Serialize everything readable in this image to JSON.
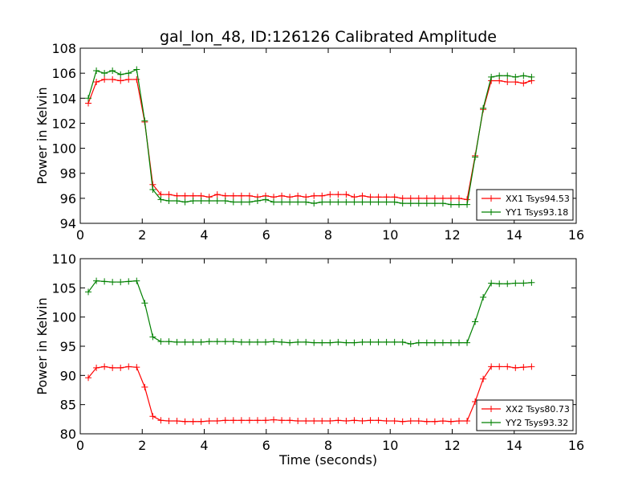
{
  "figure": {
    "title": "gal_lon_48, ID:126126 Calibrated Amplitude"
  },
  "chart_data": [
    {
      "type": "line",
      "title": "gal_lon_48, ID:126126 Calibrated Amplitude",
      "xlabel": "",
      "ylabel": "Power in Kelvin",
      "xlim": [
        0,
        16
      ],
      "ylim": [
        94,
        108
      ],
      "xticks": [
        0,
        2,
        4,
        6,
        8,
        10,
        12,
        14,
        16
      ],
      "yticks": [
        94,
        96,
        98,
        100,
        102,
        104,
        106,
        108
      ],
      "grid": false,
      "legend_position": "lower-right",
      "x": [
        0.26,
        0.52,
        0.78,
        1.04,
        1.3,
        1.56,
        1.82,
        2.08,
        2.34,
        2.6,
        2.86,
        3.12,
        3.38,
        3.64,
        3.9,
        4.16,
        4.42,
        4.68,
        4.94,
        5.2,
        5.46,
        5.72,
        5.98,
        6.24,
        6.5,
        6.76,
        7.02,
        7.28,
        7.54,
        7.8,
        8.06,
        8.32,
        8.58,
        8.84,
        9.1,
        9.36,
        9.62,
        9.88,
        10.14,
        10.4,
        10.66,
        10.92,
        11.18,
        11.44,
        11.7,
        11.96,
        12.22,
        12.48,
        12.74,
        13.0,
        13.26,
        13.52,
        13.78,
        14.04,
        14.3,
        14.56
      ],
      "series": [
        {
          "name": "XX1 Tsys94.53",
          "color": "#ff0000",
          "values": [
            103.6,
            105.3,
            105.5,
            105.5,
            105.4,
            105.5,
            105.5,
            102.1,
            97.1,
            96.3,
            96.3,
            96.2,
            96.2,
            96.2,
            96.2,
            96.1,
            96.3,
            96.2,
            96.2,
            96.2,
            96.2,
            96.1,
            96.2,
            96.1,
            96.2,
            96.1,
            96.2,
            96.1,
            96.2,
            96.2,
            96.3,
            96.3,
            96.3,
            96.1,
            96.2,
            96.1,
            96.1,
            96.1,
            96.1,
            96.0,
            96.0,
            96.0,
            96.0,
            96.0,
            96.0,
            96.0,
            96.0,
            95.9,
            99.4,
            103.1,
            105.4,
            105.4,
            105.3,
            105.3,
            105.2,
            105.4
          ]
        },
        {
          "name": "YY1 Tsys93.18",
          "color": "#008000",
          "values": [
            104.0,
            106.2,
            106.0,
            106.2,
            105.9,
            106.0,
            106.3,
            102.2,
            96.7,
            95.9,
            95.8,
            95.8,
            95.7,
            95.8,
            95.8,
            95.8,
            95.8,
            95.8,
            95.7,
            95.7,
            95.7,
            95.8,
            95.9,
            95.7,
            95.7,
            95.7,
            95.7,
            95.7,
            95.6,
            95.7,
            95.7,
            95.7,
            95.7,
            95.7,
            95.7,
            95.7,
            95.7,
            95.7,
            95.7,
            95.6,
            95.6,
            95.6,
            95.6,
            95.6,
            95.6,
            95.5,
            95.5,
            95.5,
            99.3,
            103.2,
            105.7,
            105.8,
            105.8,
            105.7,
            105.8,
            105.7
          ]
        }
      ]
    },
    {
      "type": "line",
      "title": "",
      "xlabel": "Time (seconds)",
      "ylabel": "Power in Kelvin",
      "xlim": [
        0,
        16
      ],
      "ylim": [
        80,
        110
      ],
      "xticks": [
        0,
        2,
        4,
        6,
        8,
        10,
        12,
        14,
        16
      ],
      "yticks": [
        80,
        85,
        90,
        95,
        100,
        105,
        110
      ],
      "grid": false,
      "legend_position": "lower-right",
      "x": [
        0.26,
        0.52,
        0.78,
        1.04,
        1.3,
        1.56,
        1.82,
        2.08,
        2.34,
        2.6,
        2.86,
        3.12,
        3.38,
        3.64,
        3.9,
        4.16,
        4.42,
        4.68,
        4.94,
        5.2,
        5.46,
        5.72,
        5.98,
        6.24,
        6.5,
        6.76,
        7.02,
        7.28,
        7.54,
        7.8,
        8.06,
        8.32,
        8.58,
        8.84,
        9.1,
        9.36,
        9.62,
        9.88,
        10.14,
        10.4,
        10.66,
        10.92,
        11.18,
        11.44,
        11.7,
        11.96,
        12.22,
        12.48,
        12.74,
        13.0,
        13.26,
        13.52,
        13.78,
        14.04,
        14.3,
        14.56
      ],
      "series": [
        {
          "name": "XX2 Tsys80.73",
          "color": "#ff0000",
          "values": [
            89.6,
            91.3,
            91.5,
            91.3,
            91.3,
            91.5,
            91.4,
            88.0,
            83.0,
            82.3,
            82.2,
            82.2,
            82.1,
            82.1,
            82.1,
            82.2,
            82.2,
            82.3,
            82.3,
            82.3,
            82.3,
            82.3,
            82.3,
            82.4,
            82.3,
            82.3,
            82.2,
            82.2,
            82.2,
            82.2,
            82.2,
            82.3,
            82.2,
            82.3,
            82.2,
            82.3,
            82.3,
            82.2,
            82.2,
            82.1,
            82.2,
            82.2,
            82.1,
            82.1,
            82.2,
            82.1,
            82.2,
            82.2,
            85.5,
            89.4,
            91.5,
            91.5,
            91.5,
            91.3,
            91.4,
            91.5
          ]
        },
        {
          "name": "YY2 Tsys93.32",
          "color": "#008000",
          "values": [
            104.3,
            106.2,
            106.1,
            106.0,
            106.0,
            106.1,
            106.2,
            102.4,
            96.6,
            95.8,
            95.8,
            95.7,
            95.7,
            95.7,
            95.7,
            95.8,
            95.8,
            95.8,
            95.8,
            95.7,
            95.7,
            95.7,
            95.7,
            95.8,
            95.7,
            95.6,
            95.7,
            95.7,
            95.6,
            95.6,
            95.6,
            95.7,
            95.6,
            95.6,
            95.7,
            95.7,
            95.7,
            95.7,
            95.7,
            95.7,
            95.4,
            95.6,
            95.6,
            95.6,
            95.6,
            95.6,
            95.6,
            95.6,
            99.2,
            103.4,
            105.8,
            105.7,
            105.7,
            105.8,
            105.8,
            105.9
          ]
        }
      ]
    }
  ]
}
